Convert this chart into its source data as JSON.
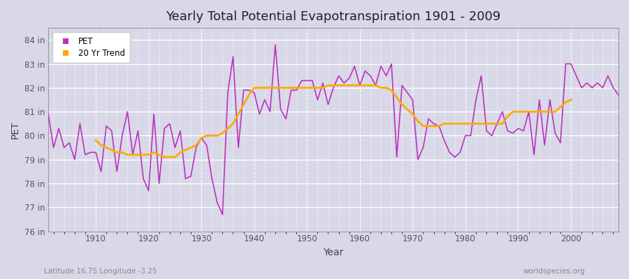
{
  "title": "Yearly Total Potential Evapotranspiration 1901 - 2009",
  "xlabel": "Year",
  "ylabel": "PET",
  "subtitle_left": "Latitude 16.75 Longitude -3.25",
  "subtitle_right": "worldspecies.org",
  "pet_color": "#bb33bb",
  "trend_color": "#ffaa00",
  "bg_color": "#d8d8e8",
  "plot_bg_color": "#d8d8e8",
  "ylim": [
    76,
    84.5
  ],
  "yticks": [
    76,
    77,
    78,
    79,
    80,
    81,
    82,
    83,
    84
  ],
  "ytick_labels": [
    "76 in",
    "77 in",
    "78 in",
    "79 in",
    "80 in",
    "81 in",
    "82 in",
    "83 in",
    "84 in"
  ],
  "years": [
    1901,
    1902,
    1903,
    1904,
    1905,
    1906,
    1907,
    1908,
    1909,
    1910,
    1911,
    1912,
    1913,
    1914,
    1915,
    1916,
    1917,
    1918,
    1919,
    1920,
    1921,
    1922,
    1923,
    1924,
    1925,
    1926,
    1927,
    1928,
    1929,
    1930,
    1931,
    1932,
    1933,
    1934,
    1935,
    1936,
    1937,
    1938,
    1939,
    1940,
    1941,
    1942,
    1943,
    1944,
    1945,
    1946,
    1947,
    1948,
    1949,
    1950,
    1951,
    1952,
    1953,
    1954,
    1955,
    1956,
    1957,
    1958,
    1959,
    1960,
    1961,
    1962,
    1963,
    1964,
    1965,
    1966,
    1967,
    1968,
    1969,
    1970,
    1971,
    1972,
    1973,
    1974,
    1975,
    1976,
    1977,
    1978,
    1979,
    1980,
    1981,
    1982,
    1983,
    1984,
    1985,
    1986,
    1987,
    1988,
    1989,
    1990,
    1991,
    1992,
    1993,
    1994,
    1995,
    1996,
    1997,
    1998,
    1999,
    2000,
    2001,
    2002,
    2003,
    2004,
    2005,
    2006,
    2007,
    2008,
    2009
  ],
  "pet_values": [
    80.9,
    79.5,
    80.3,
    79.5,
    79.7,
    79.0,
    80.5,
    79.2,
    79.3,
    79.3,
    78.5,
    80.4,
    80.2,
    78.5,
    80.0,
    81.0,
    79.2,
    80.2,
    78.2,
    77.7,
    80.9,
    78.0,
    80.3,
    80.5,
    79.5,
    80.2,
    78.2,
    78.3,
    79.5,
    79.9,
    79.6,
    78.2,
    77.2,
    76.7,
    81.8,
    83.3,
    79.5,
    81.9,
    81.9,
    81.8,
    80.9,
    81.5,
    81.0,
    83.8,
    81.1,
    80.7,
    81.9,
    81.9,
    82.3,
    82.3,
    82.3,
    81.5,
    82.2,
    81.3,
    82.0,
    82.5,
    82.2,
    82.4,
    82.9,
    82.1,
    82.7,
    82.5,
    82.1,
    82.9,
    82.5,
    83.0,
    79.1,
    82.1,
    81.8,
    81.5,
    79.0,
    79.5,
    80.7,
    80.5,
    80.4,
    79.8,
    79.3,
    79.1,
    79.3,
    80.0,
    80.0,
    81.5,
    82.5,
    80.2,
    80.0,
    80.5,
    81.0,
    80.2,
    80.1,
    80.3,
    80.2,
    81.0,
    79.2,
    81.5,
    79.6,
    81.5,
    80.1,
    79.7,
    83.0,
    83.0,
    82.5,
    82.0,
    82.2,
    82.0,
    82.2,
    82.0,
    82.5,
    82.0,
    81.7
  ],
  "trend_years": [
    1910,
    1911,
    1912,
    1913,
    1914,
    1915,
    1916,
    1917,
    1918,
    1919,
    1920,
    1921,
    1922,
    1923,
    1924,
    1925,
    1926,
    1927,
    1928,
    1929,
    1930,
    1931,
    1932,
    1933,
    1934,
    1935,
    1936,
    1937,
    1938,
    1939,
    1940,
    1941,
    1942,
    1943,
    1944,
    1945,
    1946,
    1947,
    1948,
    1949,
    1950,
    1951,
    1952,
    1953,
    1954,
    1955,
    1956,
    1957,
    1958,
    1959,
    1960,
    1961,
    1962,
    1963,
    1964,
    1965,
    1966,
    1967,
    1968,
    1969,
    1970,
    1971,
    1972,
    1973,
    1974,
    1975,
    1976,
    1977,
    1978,
    1979,
    1980,
    1981,
    1982,
    1983,
    1984,
    1985,
    1986,
    1987,
    1988,
    1989,
    1990,
    1991,
    1992,
    1993,
    1994,
    1995,
    1996,
    1997,
    1998,
    1999,
    2000
  ],
  "trend_values": [
    79.8,
    79.6,
    79.5,
    79.4,
    79.3,
    79.3,
    79.2,
    79.2,
    79.2,
    79.2,
    79.2,
    79.3,
    79.2,
    79.1,
    79.1,
    79.1,
    79.3,
    79.4,
    79.5,
    79.6,
    79.9,
    80.0,
    80.0,
    80.0,
    80.1,
    80.3,
    80.5,
    80.9,
    81.3,
    81.7,
    82.0,
    82.0,
    82.0,
    82.0,
    82.0,
    82.0,
    82.0,
    82.0,
    82.0,
    82.0,
    82.0,
    82.0,
    82.0,
    82.0,
    82.1,
    82.1,
    82.1,
    82.1,
    82.1,
    82.1,
    82.1,
    82.1,
    82.1,
    82.1,
    82.0,
    82.0,
    81.9,
    81.6,
    81.3,
    81.1,
    80.9,
    80.6,
    80.4,
    80.4,
    80.4,
    80.4,
    80.5,
    80.5,
    80.5,
    80.5,
    80.5,
    80.5,
    80.5,
    80.5,
    80.5,
    80.5,
    80.5,
    80.5,
    80.8,
    81.0,
    81.0,
    81.0,
    81.0,
    81.0,
    81.0,
    81.0,
    81.0,
    81.0,
    81.2,
    81.4,
    81.5
  ]
}
